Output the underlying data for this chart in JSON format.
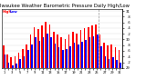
{
  "title": "Milwaukee Weather Barometric Pressure Daily High/Low",
  "bar_width": 0.38,
  "background_color": "#ffffff",
  "high_color": "#ff0000",
  "low_color": "#0000ff",
  "ylim": [
    29.0,
    31.05
  ],
  "yticks": [
    29.0,
    29.2,
    29.4,
    29.6,
    29.8,
    30.0,
    30.2,
    30.4,
    30.6,
    30.8,
    31.0
  ],
  "ytick_labels": [
    "29",
    ".2",
    ".4",
    ".6",
    ".8",
    "30",
    ".2",
    ".4",
    ".6",
    ".8",
    "31"
  ],
  "n_days": 31,
  "high": [
    29.78,
    29.48,
    29.38,
    29.42,
    29.55,
    29.65,
    29.82,
    30.18,
    30.42,
    30.35,
    30.48,
    30.62,
    30.52,
    30.28,
    30.18,
    30.08,
    30.02,
    30.18,
    30.28,
    30.22,
    30.32,
    30.38,
    30.42,
    30.48,
    30.52,
    30.18,
    29.88,
    29.78,
    29.82,
    29.72,
    29.62
  ],
  "low": [
    29.48,
    29.18,
    29.08,
    29.15,
    29.32,
    29.42,
    29.62,
    29.82,
    30.08,
    29.95,
    30.08,
    30.22,
    30.08,
    29.85,
    29.72,
    29.62,
    29.65,
    29.75,
    29.88,
    29.82,
    29.92,
    29.98,
    30.08,
    30.12,
    30.18,
    29.75,
    29.42,
    29.32,
    29.38,
    29.28,
    29.18
  ],
  "vline_pos": 25.5,
  "title_fontsize": 3.8,
  "tick_fontsize": 2.6,
  "ytick_fontsize": 2.8,
  "legend_high": "High",
  "legend_low": "Low"
}
